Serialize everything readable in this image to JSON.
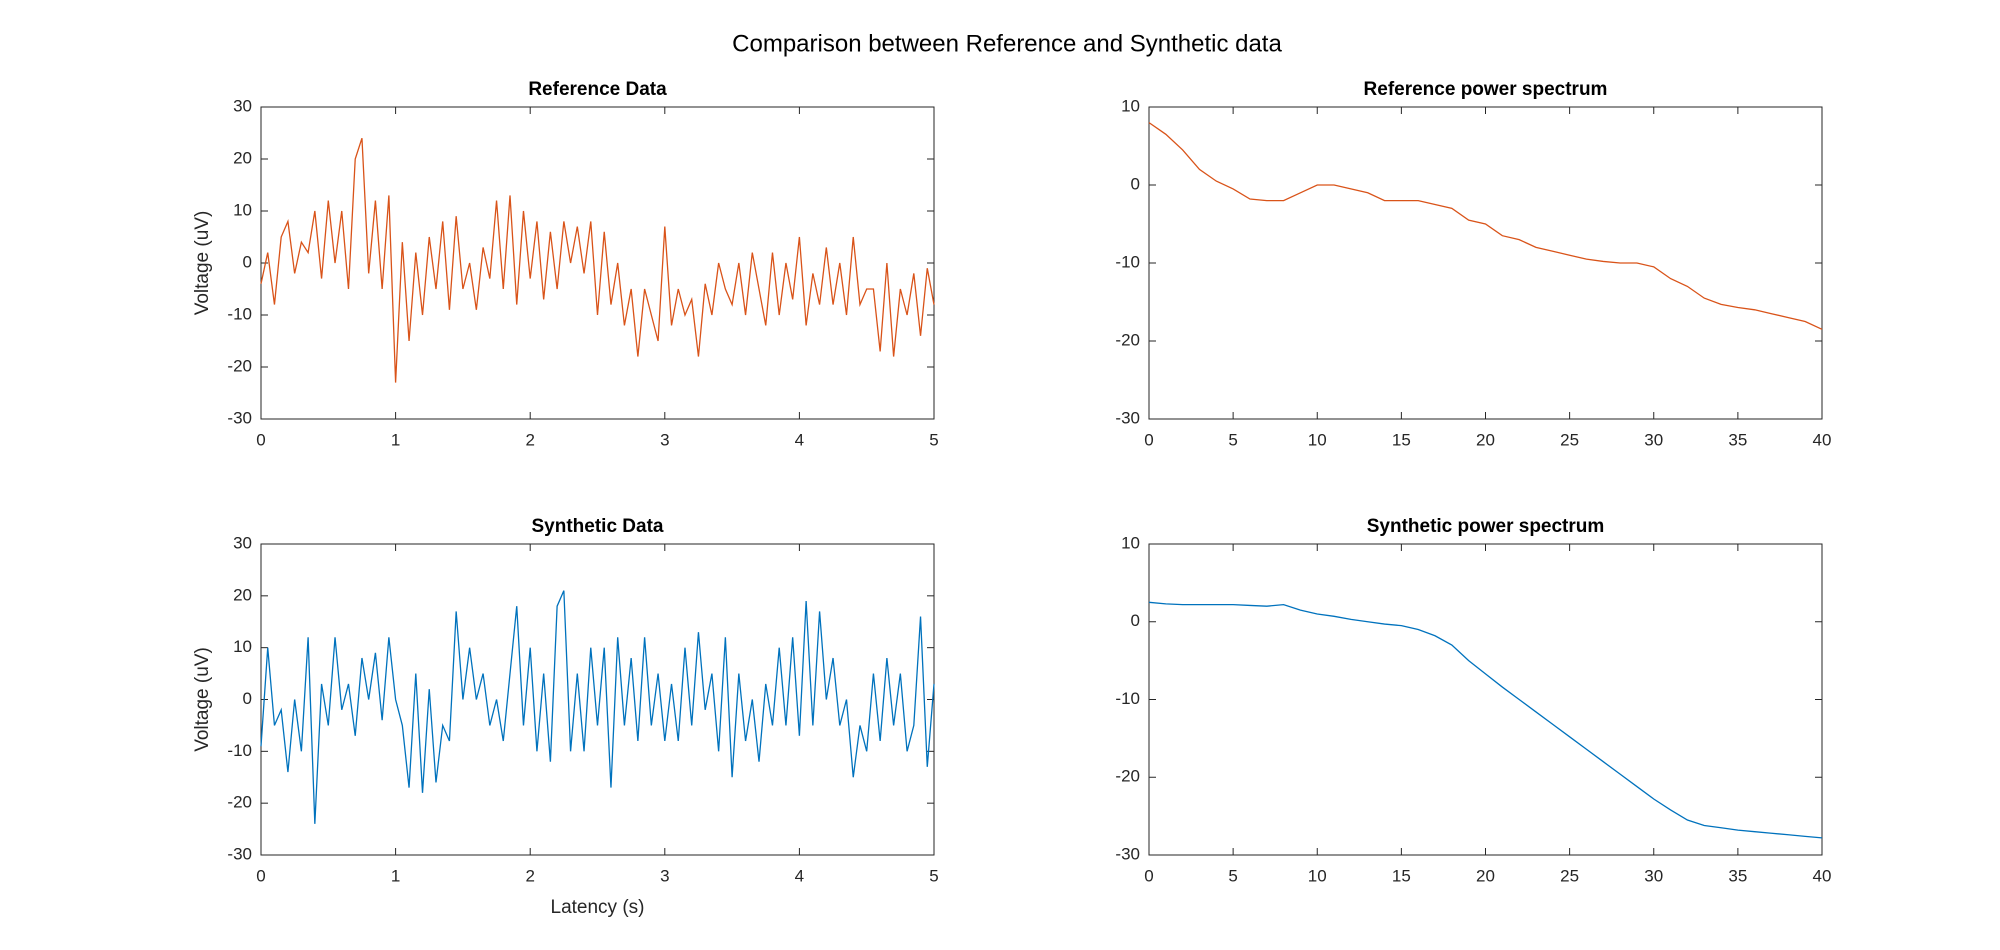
{
  "title": "Comparison between Reference and Synthetic data",
  "chart_data": [
    {
      "type": "line",
      "title": "Reference Data",
      "ylabel": "Voltage (uV)",
      "color": "#D95319",
      "xlim": [
        0,
        5
      ],
      "xticks": [
        0,
        1,
        2,
        3,
        4,
        5
      ],
      "ylim": [
        -30,
        30
      ],
      "yticks": [
        -30,
        -20,
        -10,
        0,
        10,
        20,
        30
      ],
      "x": [
        0,
        0.05,
        0.1,
        0.15,
        0.2,
        0.25,
        0.3,
        0.35,
        0.4,
        0.45,
        0.5,
        0.55,
        0.6,
        0.65,
        0.7,
        0.75,
        0.8,
        0.85,
        0.9,
        0.95,
        1,
        1.05,
        1.1,
        1.15,
        1.2,
        1.25,
        1.3,
        1.35,
        1.4,
        1.45,
        1.5,
        1.55,
        1.6,
        1.65,
        1.7,
        1.75,
        1.8,
        1.85,
        1.9,
        1.95,
        2,
        2.05,
        2.1,
        2.15,
        2.2,
        2.25,
        2.3,
        2.35,
        2.4,
        2.45,
        2.5,
        2.55,
        2.6,
        2.65,
        2.7,
        2.75,
        2.8,
        2.85,
        2.9,
        2.95,
        3,
        3.05,
        3.1,
        3.15,
        3.2,
        3.25,
        3.3,
        3.35,
        3.4,
        3.45,
        3.5,
        3.55,
        3.6,
        3.65,
        3.7,
        3.75,
        3.8,
        3.85,
        3.9,
        3.95,
        4,
        4.05,
        4.1,
        4.15,
        4.2,
        4.25,
        4.3,
        4.35,
        4.4,
        4.45,
        4.5,
        4.55,
        4.6,
        4.65,
        4.7,
        4.75,
        4.8,
        4.85,
        4.9,
        4.95,
        5
      ],
      "values": [
        -4,
        2,
        -8,
        5,
        8,
        -2,
        4,
        2,
        10,
        -3,
        12,
        0,
        10,
        -5,
        20,
        24,
        -2,
        12,
        -5,
        13,
        -23,
        4,
        -15,
        2,
        -10,
        5,
        -5,
        8,
        -9,
        9,
        -5,
        0,
        -9,
        3,
        -3,
        12,
        -5,
        13,
        -8,
        10,
        -3,
        8,
        -7,
        6,
        -5,
        8,
        0,
        7,
        -2,
        8,
        -10,
        6,
        -8,
        0,
        -12,
        -5,
        -18,
        -5,
        -10,
        -15,
        7,
        -12,
        -5,
        -10,
        -7,
        -18,
        -4,
        -10,
        0,
        -5,
        -8,
        0,
        -10,
        2,
        -5,
        -12,
        2,
        -10,
        0,
        -7,
        5,
        -12,
        -2,
        -8,
        3,
        -8,
        0,
        -10,
        5,
        -8,
        -5,
        -5,
        -17,
        0,
        -18,
        -5,
        -10,
        -2,
        -14,
        -1,
        -8
      ]
    },
    {
      "type": "line",
      "title": "Reference power spectrum",
      "color": "#D95319",
      "xlim": [
        0,
        40
      ],
      "xticks": [
        0,
        5,
        10,
        15,
        20,
        25,
        30,
        35,
        40
      ],
      "ylim": [
        -30,
        10
      ],
      "yticks": [
        -30,
        -20,
        -10,
        0,
        10
      ],
      "x": [
        0,
        1,
        2,
        3,
        4,
        5,
        6,
        7,
        8,
        9,
        10,
        11,
        12,
        13,
        14,
        15,
        16,
        17,
        18,
        19,
        20,
        21,
        22,
        23,
        24,
        25,
        26,
        27,
        28,
        29,
        30,
        31,
        32,
        33,
        34,
        35,
        36,
        37,
        38,
        39,
        40
      ],
      "values": [
        8,
        6.5,
        4.5,
        2,
        0.5,
        -0.5,
        -1.8,
        -2,
        -2,
        -1,
        0,
        0,
        -0.5,
        -1,
        -2,
        -2,
        -2,
        -2.5,
        -3,
        -4.5,
        -5,
        -6.5,
        -7,
        -8,
        -8.5,
        -9,
        -9.5,
        -9.8,
        -10,
        -10,
        -10.5,
        -12,
        -13,
        -14.5,
        -15.3,
        -15.7,
        -16,
        -16.5,
        -17,
        -17.5,
        -18.5
      ]
    },
    {
      "type": "line",
      "title": "Synthetic Data",
      "ylabel": "Voltage (uV)",
      "xlabel": "Latency (s)",
      "color": "#0072BD",
      "xlim": [
        0,
        5
      ],
      "xticks": [
        0,
        1,
        2,
        3,
        4,
        5
      ],
      "ylim": [
        -30,
        30
      ],
      "yticks": [
        -30,
        -20,
        -10,
        0,
        10,
        20,
        30
      ],
      "x": [
        0,
        0.05,
        0.1,
        0.15,
        0.2,
        0.25,
        0.3,
        0.35,
        0.4,
        0.45,
        0.5,
        0.55,
        0.6,
        0.65,
        0.7,
        0.75,
        0.8,
        0.85,
        0.9,
        0.95,
        1,
        1.05,
        1.1,
        1.15,
        1.2,
        1.25,
        1.3,
        1.35,
        1.4,
        1.45,
        1.5,
        1.55,
        1.6,
        1.65,
        1.7,
        1.75,
        1.8,
        1.85,
        1.9,
        1.95,
        2,
        2.05,
        2.1,
        2.15,
        2.2,
        2.25,
        2.3,
        2.35,
        2.4,
        2.45,
        2.5,
        2.55,
        2.6,
        2.65,
        2.7,
        2.75,
        2.8,
        2.85,
        2.9,
        2.95,
        3,
        3.05,
        3.1,
        3.15,
        3.2,
        3.25,
        3.3,
        3.35,
        3.4,
        3.45,
        3.5,
        3.55,
        3.6,
        3.65,
        3.7,
        3.75,
        3.8,
        3.85,
        3.9,
        3.95,
        4,
        4.05,
        4.1,
        4.15,
        4.2,
        4.25,
        4.3,
        4.35,
        4.4,
        4.45,
        4.5,
        4.55,
        4.6,
        4.65,
        4.7,
        4.75,
        4.8,
        4.85,
        4.9,
        4.95,
        5
      ],
      "values": [
        -9,
        10,
        -5,
        -2,
        -14,
        0,
        -10,
        12,
        -24,
        3,
        -5,
        12,
        -2,
        3,
        -7,
        8,
        0,
        9,
        -4,
        12,
        0,
        -5,
        -17,
        5,
        -18,
        2,
        -16,
        -5,
        -8,
        17,
        0,
        10,
        0,
        5,
        -5,
        0,
        -8,
        5,
        18,
        -5,
        10,
        -10,
        5,
        -12,
        18,
        21,
        -10,
        5,
        -10,
        10,
        -5,
        10,
        -17,
        12,
        -5,
        8,
        -8,
        12,
        -5,
        5,
        -8,
        3,
        -8,
        10,
        -5,
        13,
        -2,
        5,
        -10,
        12,
        -15,
        5,
        -8,
        0,
        -12,
        3,
        -5,
        10,
        -5,
        12,
        -7,
        19,
        -5,
        17,
        0,
        8,
        -5,
        0,
        -15,
        -5,
        -10,
        5,
        -8,
        8,
        -5,
        5,
        -10,
        -5,
        16,
        -13,
        3
      ]
    },
    {
      "type": "line",
      "title": "Synthetic power spectrum",
      "color": "#0072BD",
      "xlim": [
        0,
        40
      ],
      "xticks": [
        0,
        5,
        10,
        15,
        20,
        25,
        30,
        35,
        40
      ],
      "ylim": [
        -30,
        10
      ],
      "yticks": [
        -30,
        -20,
        -10,
        0,
        10
      ],
      "x": [
        0,
        1,
        2,
        3,
        4,
        5,
        6,
        7,
        8,
        9,
        10,
        11,
        12,
        13,
        14,
        15,
        16,
        17,
        18,
        19,
        20,
        21,
        22,
        23,
        24,
        25,
        26,
        27,
        28,
        29,
        30,
        31,
        32,
        33,
        34,
        35,
        36,
        37,
        38,
        39,
        40
      ],
      "values": [
        2.5,
        2.3,
        2.2,
        2.2,
        2.2,
        2.2,
        2.1,
        2,
        2.2,
        1.5,
        1,
        0.7,
        0.3,
        0,
        -0.3,
        -0.5,
        -1,
        -1.8,
        -3,
        -5,
        -6.7,
        -8.4,
        -10,
        -11.6,
        -13.2,
        -14.8,
        -16.4,
        -18,
        -19.6,
        -21.2,
        -22.8,
        -24.2,
        -25.5,
        -26.2,
        -26.5,
        -26.8,
        -27,
        -27.2,
        -27.4,
        -27.6,
        -27.8
      ]
    }
  ]
}
